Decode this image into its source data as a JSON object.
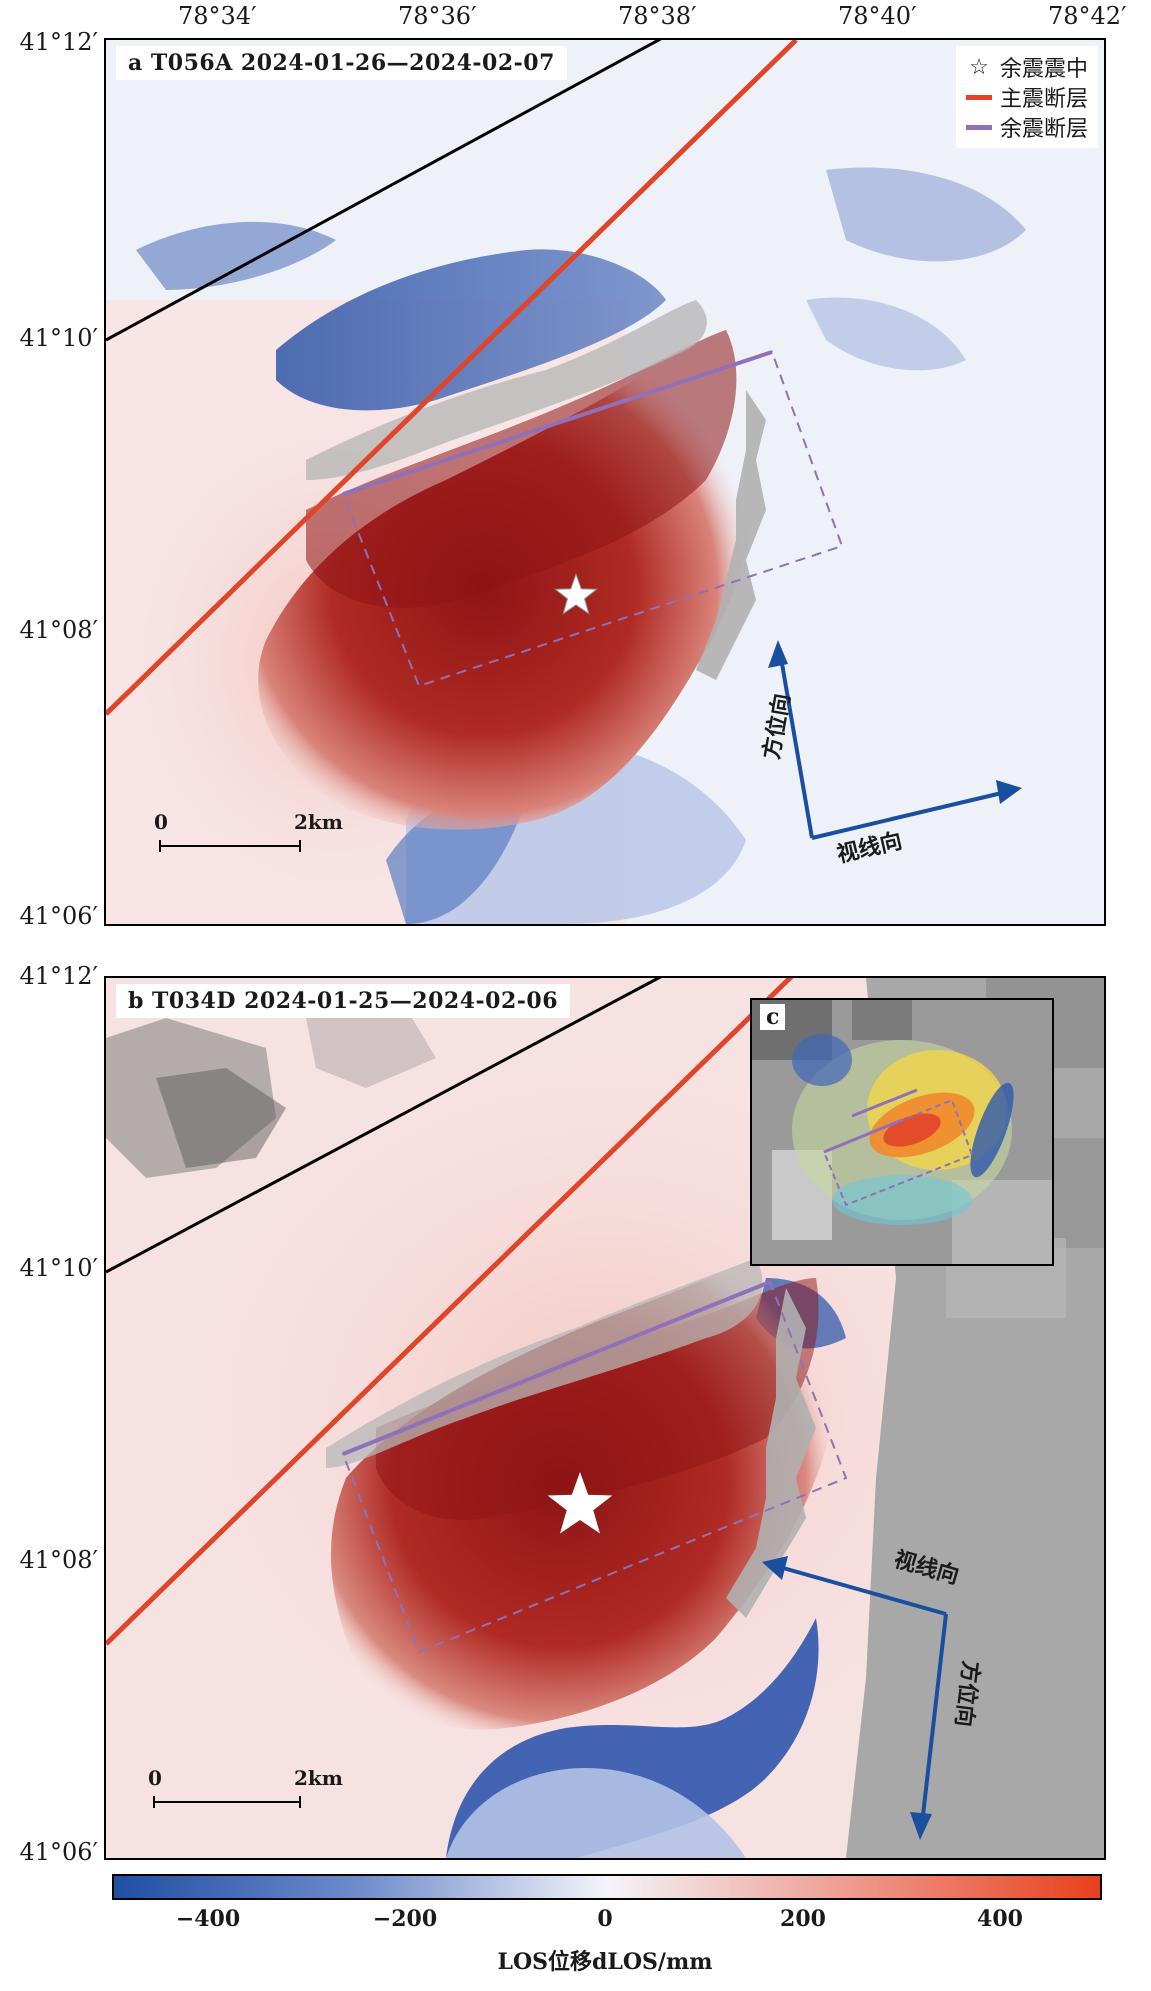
{
  "longitude_labels": [
    "78°34′",
    "78°36′",
    "78°38′",
    "78°40′",
    "78°42′"
  ],
  "latitude_labels": [
    "41°12′",
    "41°10′",
    "41°08′",
    "41°06′"
  ],
  "panels": [
    {
      "id": "a",
      "title": "a   T056A  2024-01-26—2024-02-07",
      "legend": {
        "star": "余震震中",
        "main_fault": "主震断层",
        "aftershock_fault": "余震断层"
      },
      "scalebar": {
        "start": "0",
        "end": "2km"
      },
      "arrows": {
        "azimuth": "方位向",
        "los": "视线向"
      }
    },
    {
      "id": "b",
      "title": "b   T034D  2024-01-25—2024-02-06",
      "inset_label": "c",
      "scalebar": {
        "start": "0",
        "end": "2km"
      },
      "arrows": {
        "azimuth": "方位向",
        "los": "视线向"
      }
    }
  ],
  "colorbar": {
    "ticks": [
      "−400",
      "−200",
      "0",
      "200",
      "400"
    ],
    "title": "LOS位移dLOS/mm",
    "colors": {
      "negative": "#1f4fa3",
      "zero": "#f4f4fa",
      "positive": "#e8401c"
    }
  },
  "colors": {
    "main_fault": "#e0452a",
    "aftershock_fault": "#9070b8",
    "arrow": "#1a4fa0",
    "uplift": "#a81c1c",
    "subsidence": "#2851a8"
  }
}
